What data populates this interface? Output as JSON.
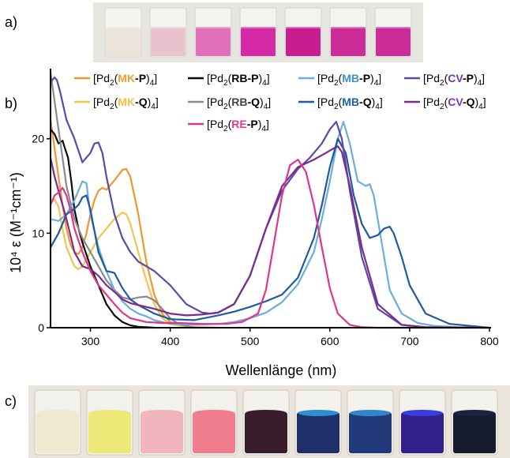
{
  "panels": {
    "a": "a)",
    "b": "b)",
    "c": "c)"
  },
  "photo_top": {
    "vial_colors": [
      "#ebe4da",
      "#e9c2cd",
      "#e26fb9",
      "#d42aa6",
      "#c61d8f",
      "#cc2b98",
      "#cb2c98"
    ],
    "background": "#e7e5e0"
  },
  "photo_bottom": {
    "vial_colors": [
      "#efe9cf",
      "#ece979",
      "#f1b5be",
      "#ef7d8d",
      "#3a1d2a",
      "#1f2f6a",
      "#223a7a",
      "#32208a",
      "#161b2e"
    ],
    "cap_colors": [
      "#efe9cf",
      "#ece979",
      "#f1b5be",
      "#ef7d8d",
      "#3a1d2a",
      "#2f8ed2",
      "#2f86c9",
      "#3a3be0",
      "#1a2440"
    ],
    "background": "#e9e4dc"
  },
  "chart_data": {
    "type": "line",
    "xlabel": "Wellenlänge (nm)",
    "ylabel": "10⁴ ε (M⁻¹cm⁻¹)",
    "xlim": [
      250,
      800
    ],
    "ylim": [
      0,
      27
    ],
    "xticks": [
      300,
      400,
      500,
      600,
      700,
      800
    ],
    "yticks": [
      0,
      10,
      20
    ],
    "legend_placement": "top",
    "series": [
      {
        "key": "MK-P",
        "name_pre": "[Pd",
        "name_sub": "2",
        "name_open": "(",
        "name_ligand": "MK",
        "name_suffix": "-P",
        "name_close": ")",
        "name_sub2": "4",
        "name_end": "]",
        "ligand_color": "#f0a030",
        "color": "#f0962e",
        "x": [
          250,
          255,
          260,
          265,
          270,
          275,
          280,
          285,
          290,
          295,
          300,
          305,
          310,
          315,
          320,
          330,
          340,
          345,
          350,
          360,
          370,
          380,
          390,
          400,
          410,
          420,
          440,
          460
        ],
        "y": [
          22,
          19,
          16,
          13,
          10.5,
          8.8,
          8,
          7.8,
          8.5,
          10,
          12,
          13.5,
          14.5,
          14.8,
          14.6,
          15.6,
          16.7,
          16.8,
          16,
          12,
          7,
          3.5,
          1.5,
          0.6,
          0.3,
          0.1,
          0.05,
          0
        ]
      },
      {
        "key": "MK-Q",
        "name_pre": "[Pd",
        "name_sub": "2",
        "name_open": "(",
        "name_ligand": "MK",
        "name_suffix": "-Q",
        "name_close": ")",
        "name_sub2": "4",
        "name_end": "]",
        "ligand_color": "#f0c040",
        "color": "#f2c451",
        "x": [
          250,
          255,
          260,
          265,
          270,
          280,
          285,
          290,
          300,
          310,
          320,
          330,
          340,
          345,
          350,
          360,
          370,
          380,
          390,
          400,
          420,
          450
        ],
        "y": [
          13.2,
          13.6,
          12.8,
          10.5,
          8.5,
          6.5,
          6.2,
          6.5,
          8,
          9.5,
          10.5,
          11.5,
          12.2,
          12.0,
          11,
          8,
          5,
          2.5,
          1,
          0.4,
          0.1,
          0
        ]
      },
      {
        "key": "RB-P",
        "name_pre": "[Pd",
        "name_sub": "2",
        "name_open": "(",
        "name_ligand": "RB",
        "name_suffix": "-P",
        "name_close": ")",
        "name_sub2": "4",
        "name_end": "]",
        "ligand_color": "#000000",
        "color": "#0b0b0b",
        "x": [
          250,
          255,
          260,
          265,
          268,
          272,
          276,
          280,
          285,
          290,
          300,
          310,
          320,
          330,
          340,
          350,
          360,
          370,
          380
        ],
        "y": [
          21,
          20.5,
          19.5,
          19.8,
          19,
          18,
          15.5,
          12.5,
          10.5,
          9,
          6.5,
          4.5,
          2.5,
          1.3,
          0.6,
          0.25,
          0.1,
          0.05,
          0
        ]
      },
      {
        "key": "RB-Q",
        "name_pre": "[Pd",
        "name_sub": "2",
        "name_open": "(",
        "name_ligand": "RB",
        "name_suffix": "-Q",
        "name_close": ")",
        "name_sub2": "4",
        "name_end": "]",
        "ligand_color": "#444444",
        "color": "#8a8a8a",
        "x": [
          250,
          255,
          260,
          265,
          270,
          280,
          290,
          300,
          310,
          320,
          330,
          340,
          350,
          360,
          370,
          380,
          390,
          400,
          410,
          430
        ],
        "y": [
          27,
          24,
          21,
          18,
          15,
          11.5,
          9.5,
          8,
          6.5,
          5,
          4,
          3.2,
          3,
          3.2,
          3.3,
          2.9,
          2,
          1,
          0.4,
          0
        ]
      },
      {
        "key": "MB-P",
        "name_pre": "[Pd",
        "name_sub": "2",
        "name_open": "(",
        "name_ligand": "MB",
        "name_suffix": "-P",
        "name_close": ")",
        "name_sub2": "4",
        "name_end": "]",
        "ligand_color": "#3f8fd0",
        "color": "#6aaedd",
        "x": [
          250,
          260,
          270,
          280,
          290,
          295,
          300,
          310,
          320,
          330,
          340,
          350,
          360,
          370,
          380,
          400,
          430,
          460,
          480,
          500,
          520,
          540,
          560,
          580,
          590,
          600,
          610,
          617,
          625,
          635,
          645,
          650,
          655,
          665,
          675,
          690,
          710,
          730,
          760,
          800
        ],
        "y": [
          11.5,
          11.3,
          12,
          13.5,
          15.5,
          15.3,
          12,
          8.5,
          6,
          4,
          2.8,
          2,
          1.5,
          1.2,
          0.8,
          0.4,
          0.3,
          0.4,
          0.6,
          1,
          1.6,
          2.7,
          4.6,
          8,
          11.5,
          15.5,
          20,
          21.8,
          19.5,
          15.5,
          15,
          15.2,
          14,
          9,
          4,
          1.5,
          0.5,
          0.2,
          0.05,
          0
        ]
      },
      {
        "key": "MB-Q",
        "name_pre": "[Pd",
        "name_sub": "2",
        "name_open": "(",
        "name_ligand": "MB",
        "name_suffix": "-Q",
        "name_close": ")",
        "name_sub2": "4",
        "name_end": "]",
        "ligand_color": "#1f5fa8",
        "color": "#1f5aa0",
        "x": [
          250,
          260,
          270,
          280,
          285,
          290,
          295,
          300,
          310,
          320,
          330,
          340,
          350,
          360,
          380,
          400,
          430,
          460,
          480,
          500,
          520,
          540,
          560,
          580,
          590,
          600,
          610,
          620,
          630,
          640,
          650,
          660,
          668,
          675,
          680,
          690,
          700,
          720,
          750,
          800
        ],
        "y": [
          8.5,
          10,
          12,
          12.6,
          13,
          13.8,
          14,
          12.5,
          8,
          6,
          5.8,
          4.2,
          3,
          2.4,
          1.5,
          0.9,
          0.8,
          1.3,
          1.7,
          2.2,
          2.8,
          3.5,
          5.3,
          9.5,
          13,
          17,
          20,
          18.5,
          14,
          11,
          9.5,
          9.8,
          10.5,
          10.7,
          10,
          7.5,
          4.5,
          1.5,
          0.4,
          0
        ]
      },
      {
        "key": "CV-P",
        "name_pre": "[Pd",
        "name_sub": "2",
        "name_open": "(",
        "name_ligand": "CV",
        "name_suffix": "-P",
        "name_close": ")",
        "name_sub2": "4",
        "name_end": "]",
        "ligand_color": "#6a3aa0",
        "color": "#5a4aa6",
        "x": [
          250,
          255,
          258,
          262,
          270,
          280,
          290,
          300,
          305,
          310,
          315,
          320,
          330,
          340,
          350,
          360,
          370,
          380,
          400,
          420,
          440,
          450,
          460,
          480,
          500,
          520,
          540,
          560,
          575,
          590,
          600,
          608,
          615,
          625,
          640,
          660,
          690,
          720,
          760,
          800
        ],
        "y": [
          26,
          26.5,
          26.2,
          25,
          22,
          20,
          17.5,
          18.5,
          19.5,
          19.6,
          18.5,
          16,
          12,
          9.5,
          8,
          7,
          6.5,
          6,
          4.5,
          2.5,
          1.6,
          1.5,
          1.6,
          2.5,
          5.5,
          10.5,
          14.5,
          16.8,
          18,
          19.5,
          21,
          21.8,
          20,
          14.5,
          7.5,
          2,
          0.3,
          0.05,
          0,
          0
        ]
      },
      {
        "key": "CV-Q",
        "name_pre": "[Pd",
        "name_sub": "2",
        "name_open": "(",
        "name_ligand": "CV",
        "name_suffix": "-Q",
        "name_close": ")",
        "name_sub2": "4",
        "name_end": "]",
        "ligand_color": "#7a3ab0",
        "color": "#7a2c8c",
        "x": [
          250,
          255,
          260,
          265,
          270,
          280,
          290,
          300,
          310,
          320,
          330,
          340,
          350,
          360,
          380,
          400,
          420,
          440,
          460,
          480,
          500,
          520,
          540,
          560,
          580,
          595,
          605,
          610,
          615,
          625,
          640,
          660,
          690,
          720,
          800
        ],
        "y": [
          18,
          16,
          14.5,
          13,
          11.5,
          8,
          6.5,
          6.2,
          5.5,
          4.5,
          3.8,
          3,
          2.6,
          2.4,
          2,
          1.5,
          1.3,
          1.4,
          1.6,
          2.5,
          5.5,
          10.5,
          15,
          17,
          17.8,
          18.5,
          19,
          19.2,
          18.6,
          15,
          8.5,
          2.5,
          0.3,
          0.05,
          0
        ]
      },
      {
        "key": "RE-P",
        "name_pre": "[Pd",
        "name_sub": "2",
        "name_open": "(",
        "name_ligand": "RE",
        "name_suffix": "-P",
        "name_close": ")",
        "name_sub2": "4",
        "name_end": "]",
        "ligand_color": "#e23a8a",
        "color": "#e0358c",
        "x": [
          250,
          255,
          260,
          265,
          270,
          275,
          280,
          290,
          300,
          310,
          320,
          330,
          340,
          350,
          370,
          390,
          410,
          440,
          470,
          490,
          510,
          520,
          530,
          540,
          550,
          560,
          570,
          580,
          590,
          600,
          610,
          625,
          640,
          660,
          700,
          800
        ],
        "y": [
          13,
          14,
          14.3,
          14.8,
          14,
          12.5,
          10.5,
          8,
          6,
          4.5,
          3.5,
          2.5,
          1.6,
          1,
          0.6,
          0.5,
          0.5,
          0.4,
          0.4,
          0.6,
          1.5,
          4,
          9,
          14,
          17.2,
          17.8,
          16.5,
          13,
          8.5,
          4.2,
          1.5,
          0.3,
          0.05,
          0,
          0,
          0
        ]
      }
    ]
  }
}
